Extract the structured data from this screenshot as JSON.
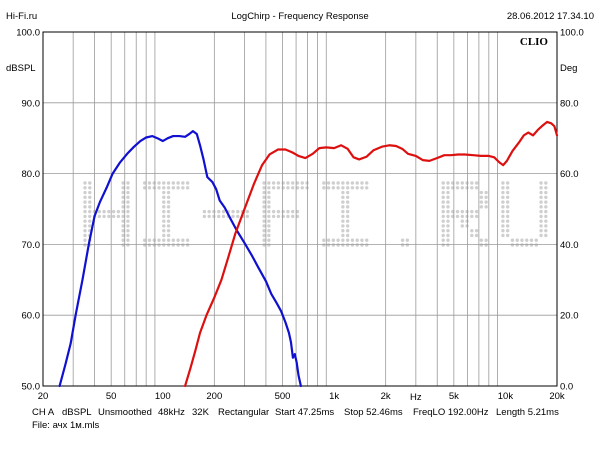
{
  "header": {
    "left": "Hi-Fi.ru",
    "center": "LogChirp - Frequency Response",
    "right": "28.06.2012 17.34.10"
  },
  "brand": "CLIO",
  "watermark": "HI-FI.RU",
  "footer": {
    "line1": [
      "CH A",
      "dBSPL",
      "Unsmoothed",
      "48kHz",
      "32K",
      "Rectangular",
      "Start 47.25ms",
      "Stop 52.46ms",
      "FreqLO 192.00Hz",
      "Length 5.21ms"
    ],
    "line2": "File: ачх 1м.mls"
  },
  "chart_data": {
    "type": "line",
    "title": "LogChirp - Frequency Response",
    "xscale": "log",
    "xlim": [
      20,
      20000
    ],
    "ylim": [
      50,
      100
    ],
    "ylim_right": [
      0,
      100
    ],
    "ylabel": "dBSPL",
    "ylabel_right": "Deg",
    "xlabel": "Hz",
    "x_ticks": [
      {
        "value": 20,
        "label": "20"
      },
      {
        "value": 50,
        "label": "50"
      },
      {
        "value": 100,
        "label": "100"
      },
      {
        "value": 200,
        "label": "200"
      },
      {
        "value": 500,
        "label": "500"
      },
      {
        "value": 1000,
        "label": "1k"
      },
      {
        "value": 2000,
        "label": "2k"
      },
      {
        "value": 5000,
        "label": "5k"
      },
      {
        "value": 10000,
        "label": "10k"
      },
      {
        "value": 20000,
        "label": "20k"
      }
    ],
    "y_ticks_left": [
      "100.0",
      "90.0",
      "80.0",
      "70.0",
      "60.0",
      "50.0"
    ],
    "y_ticks_right": [
      "100.0",
      "80.0",
      "60.0",
      "40.0",
      "20.0",
      "0.0"
    ],
    "grid": true,
    "series": [
      {
        "color": "#1010d0",
        "points": [
          [
            25,
            50
          ],
          [
            27,
            53
          ],
          [
            29,
            56
          ],
          [
            31,
            60
          ],
          [
            34,
            65
          ],
          [
            37,
            70
          ],
          [
            40,
            74
          ],
          [
            43,
            76
          ],
          [
            47,
            78
          ],
          [
            51,
            80
          ],
          [
            56,
            81.5
          ],
          [
            62,
            82.8
          ],
          [
            68,
            83.8
          ],
          [
            74,
            84.6
          ],
          [
            80,
            85.1
          ],
          [
            87,
            85.3
          ],
          [
            93,
            85
          ],
          [
            100,
            84.6
          ],
          [
            107,
            85
          ],
          [
            115,
            85.3
          ],
          [
            125,
            85.3
          ],
          [
            135,
            85.2
          ],
          [
            143,
            85.6
          ],
          [
            150,
            86
          ],
          [
            158,
            85.6
          ],
          [
            165,
            84
          ],
          [
            173,
            82
          ],
          [
            182,
            79.5
          ],
          [
            195,
            78.8
          ],
          [
            205,
            77.8
          ],
          [
            215,
            76.2
          ],
          [
            230,
            75.2
          ],
          [
            250,
            73.5
          ],
          [
            270,
            72
          ],
          [
            300,
            70.2
          ],
          [
            330,
            68.5
          ],
          [
            360,
            66.8
          ],
          [
            400,
            64.8
          ],
          [
            430,
            63
          ],
          [
            460,
            61.8
          ],
          [
            490,
            60.6
          ],
          [
            520,
            59
          ],
          [
            545,
            57.5
          ],
          [
            560,
            56.2
          ],
          [
            575,
            54
          ],
          [
            590,
            54.5
          ],
          [
            605,
            53.3
          ],
          [
            620,
            51.5
          ],
          [
            640,
            50
          ]
        ]
      },
      {
        "color": "#dd1010",
        "points": [
          [
            135,
            50
          ],
          [
            145,
            52.5
          ],
          [
            155,
            55
          ],
          [
            165,
            57.5
          ],
          [
            180,
            60
          ],
          [
            200,
            62.5
          ],
          [
            220,
            65
          ],
          [
            240,
            68
          ],
          [
            265,
            71.5
          ],
          [
            300,
            75
          ],
          [
            340,
            78.5
          ],
          [
            380,
            81.2
          ],
          [
            420,
            82.7
          ],
          [
            470,
            83.4
          ],
          [
            520,
            83.4
          ],
          [
            570,
            83
          ],
          [
            620,
            82.5
          ],
          [
            680,
            82.2
          ],
          [
            750,
            82.8
          ],
          [
            820,
            83.6
          ],
          [
            900,
            83.7
          ],
          [
            1000,
            83.6
          ],
          [
            1100,
            84
          ],
          [
            1200,
            83.5
          ],
          [
            1300,
            82.3
          ],
          [
            1400,
            82
          ],
          [
            1550,
            82.4
          ],
          [
            1700,
            83.3
          ],
          [
            1900,
            83.8
          ],
          [
            2100,
            84
          ],
          [
            2300,
            83.9
          ],
          [
            2500,
            83.5
          ],
          [
            2700,
            82.8
          ],
          [
            3000,
            82.5
          ],
          [
            3300,
            81.9
          ],
          [
            3600,
            81.8
          ],
          [
            4000,
            82.2
          ],
          [
            4400,
            82.6
          ],
          [
            4800,
            82.6
          ],
          [
            5300,
            82.7
          ],
          [
            5800,
            82.7
          ],
          [
            6500,
            82.6
          ],
          [
            7200,
            82.5
          ],
          [
            8000,
            82.5
          ],
          [
            8600,
            82.3
          ],
          [
            9200,
            81.6
          ],
          [
            9700,
            81.2
          ],
          [
            10200,
            81.8
          ],
          [
            11000,
            83.2
          ],
          [
            12000,
            84.4
          ],
          [
            12800,
            85.4
          ],
          [
            13600,
            85.8
          ],
          [
            14500,
            85.4
          ],
          [
            15500,
            86.2
          ],
          [
            16500,
            86.8
          ],
          [
            17500,
            87.3
          ],
          [
            18500,
            87.1
          ],
          [
            19300,
            86.7
          ],
          [
            20000,
            85.4
          ]
        ]
      }
    ]
  }
}
